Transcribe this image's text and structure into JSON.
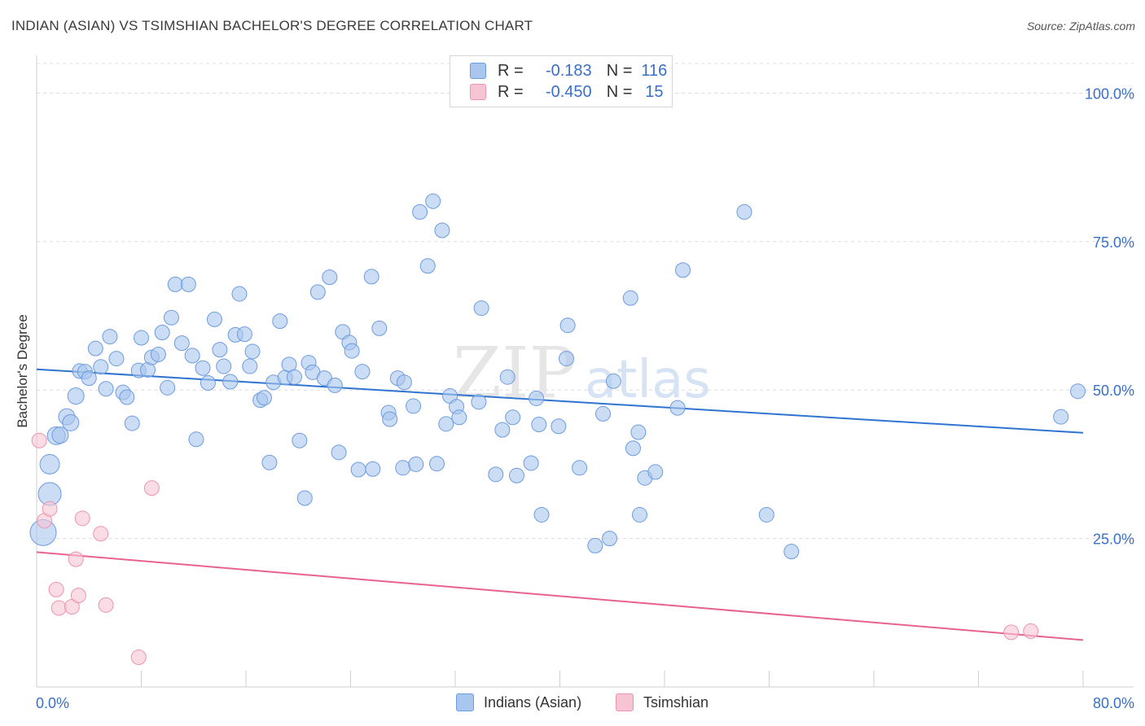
{
  "title": "INDIAN (ASIAN) VS TSIMSHIAN BACHELOR'S DEGREE CORRELATION CHART",
  "source": "Source: ZipAtlas.com",
  "watermark": {
    "zip": "ZIP",
    "atlas": "atlas"
  },
  "legend": {
    "rows": [
      {
        "r_label": "R =",
        "r_value": "-0.183",
        "n_label": "N =",
        "n_value": "116"
      },
      {
        "r_label": "R =",
        "r_value": "-0.450",
        "n_label": "N =",
        "n_value": "15"
      }
    ],
    "bottom": [
      "Indians (Asian)",
      "Tsimshian"
    ]
  },
  "colors": {
    "blue_fill": "#a9c7ee",
    "blue_stroke": "#6d9be0",
    "blue_line": "#2f74d0",
    "pink_fill": "#f7c4d3",
    "pink_stroke": "#ee93b0",
    "pink_line": "#e8628f",
    "axis_text": "#3a6fc9",
    "grid": "#dcdcdc"
  },
  "chart_data": {
    "type": "scatter",
    "title": "INDIAN (ASIAN) VS TSIMSHIAN BACHELOR'S DEGREE CORRELATION CHART",
    "xlabel": "",
    "ylabel": "Bachelor's Degree",
    "xlim": [
      0,
      80
    ],
    "ylim": [
      0,
      105
    ],
    "x_tick_labels": [
      "0.0%",
      "80.0%"
    ],
    "y_ticks": [
      25,
      50,
      75,
      100
    ],
    "y_tick_labels": [
      "25.0%",
      "50.0%",
      "75.0%",
      "100.0%"
    ],
    "series": [
      {
        "name": "Indians (Asian)",
        "color": "#a9c7ee",
        "trend": {
          "x": [
            0,
            80
          ],
          "y": [
            53.5,
            42.8
          ]
        },
        "points": [
          [
            0.5,
            26.0,
            16
          ],
          [
            1.0,
            32.5,
            14
          ],
          [
            1.0,
            37.5,
            12
          ],
          [
            1.5,
            42.3,
            11
          ],
          [
            1.8,
            42.4,
            10
          ],
          [
            2.3,
            45.5,
            10
          ],
          [
            2.6,
            44.5,
            10
          ],
          [
            3.0,
            49.0,
            10
          ],
          [
            3.3,
            53.2,
            9
          ],
          [
            3.7,
            53.1,
            9
          ],
          [
            4.0,
            52.0,
            9
          ],
          [
            4.5,
            57.0,
            9
          ],
          [
            4.9,
            53.9,
            9
          ],
          [
            5.3,
            50.2,
            9
          ],
          [
            5.6,
            59.0,
            9
          ],
          [
            6.1,
            55.3,
            9
          ],
          [
            6.6,
            49.6,
            9
          ],
          [
            6.9,
            48.8,
            9
          ],
          [
            7.3,
            44.4,
            9
          ],
          [
            7.8,
            53.3,
            9
          ],
          [
            8.0,
            58.8,
            9
          ],
          [
            8.5,
            53.4,
            9
          ],
          [
            8.8,
            55.5,
            9
          ],
          [
            9.3,
            56.0,
            9
          ],
          [
            9.6,
            59.7,
            9
          ],
          [
            10.0,
            50.4,
            9
          ],
          [
            10.3,
            62.2,
            9
          ],
          [
            10.6,
            67.8,
            9
          ],
          [
            11.1,
            57.9,
            9
          ],
          [
            11.6,
            67.8,
            9
          ],
          [
            11.9,
            55.8,
            9
          ],
          [
            12.2,
            41.7,
            9
          ],
          [
            12.7,
            53.7,
            9
          ],
          [
            13.1,
            51.2,
            9
          ],
          [
            13.6,
            61.9,
            9
          ],
          [
            14.0,
            56.8,
            9
          ],
          [
            14.3,
            54.0,
            9
          ],
          [
            14.8,
            51.4,
            9
          ],
          [
            15.2,
            59.3,
            9
          ],
          [
            15.5,
            66.2,
            9
          ],
          [
            15.9,
            59.4,
            9
          ],
          [
            16.5,
            56.5,
            9
          ],
          [
            16.3,
            54.0,
            9
          ],
          [
            17.1,
            48.3,
            9
          ],
          [
            17.4,
            48.7,
            9
          ],
          [
            17.8,
            37.8,
            9
          ],
          [
            18.1,
            51.3,
            9
          ],
          [
            18.6,
            61.6,
            9
          ],
          [
            19.0,
            52.1,
            9
          ],
          [
            19.3,
            54.3,
            9
          ],
          [
            19.7,
            52.2,
            9
          ],
          [
            20.1,
            41.5,
            9
          ],
          [
            20.5,
            31.8,
            9
          ],
          [
            20.8,
            54.6,
            9
          ],
          [
            21.1,
            53.0,
            9
          ],
          [
            21.5,
            66.5,
            9
          ],
          [
            22.0,
            52.0,
            9
          ],
          [
            22.4,
            69.0,
            9
          ],
          [
            22.8,
            50.8,
            9
          ],
          [
            23.1,
            39.5,
            9
          ],
          [
            23.4,
            59.8,
            9
          ],
          [
            23.9,
            58.0,
            9
          ],
          [
            24.1,
            56.6,
            9
          ],
          [
            24.6,
            36.6,
            9
          ],
          [
            24.9,
            53.1,
            9
          ],
          [
            25.7,
            36.7,
            9
          ],
          [
            25.6,
            69.1,
            9
          ],
          [
            26.2,
            60.4,
            9
          ],
          [
            26.9,
            46.2,
            9
          ],
          [
            27.0,
            45.1,
            9
          ],
          [
            27.6,
            52.0,
            9
          ],
          [
            28.1,
            51.3,
            9
          ],
          [
            28.0,
            36.9,
            9
          ],
          [
            28.8,
            47.3,
            9
          ],
          [
            29.0,
            37.5,
            9
          ],
          [
            29.3,
            80.0,
            9
          ],
          [
            29.9,
            70.9,
            9
          ],
          [
            30.3,
            81.8,
            9
          ],
          [
            30.6,
            37.6,
            9
          ],
          [
            31.0,
            76.9,
            9
          ],
          [
            31.3,
            44.3,
            9
          ],
          [
            31.6,
            49.0,
            9
          ],
          [
            32.1,
            47.2,
            9
          ],
          [
            32.3,
            45.4,
            9
          ],
          [
            34.0,
            63.8,
            9
          ],
          [
            33.8,
            48.0,
            9
          ],
          [
            35.1,
            35.8,
            9
          ],
          [
            35.6,
            43.3,
            9
          ],
          [
            36.0,
            52.2,
            9
          ],
          [
            36.4,
            45.4,
            9
          ],
          [
            36.7,
            35.6,
            9
          ],
          [
            37.8,
            37.7,
            9
          ],
          [
            38.2,
            48.6,
            9
          ],
          [
            38.4,
            44.2,
            9
          ],
          [
            38.6,
            29.0,
            9
          ],
          [
            39.9,
            43.9,
            9
          ],
          [
            40.5,
            55.3,
            9
          ],
          [
            40.6,
            60.9,
            9
          ],
          [
            41.5,
            36.9,
            9
          ],
          [
            42.7,
            23.8,
            9
          ],
          [
            43.3,
            46.0,
            9
          ],
          [
            43.8,
            25.0,
            9
          ],
          [
            44.1,
            51.5,
            9
          ],
          [
            45.4,
            65.5,
            9
          ],
          [
            45.6,
            40.2,
            9
          ],
          [
            46.1,
            29.0,
            9
          ],
          [
            46.0,
            42.9,
            9
          ],
          [
            46.5,
            35.2,
            9
          ],
          [
            47.3,
            36.2,
            9
          ],
          [
            49.0,
            47.0,
            9
          ],
          [
            49.4,
            70.2,
            9
          ],
          [
            54.1,
            80.0,
            9
          ],
          [
            55.8,
            29.0,
            9
          ],
          [
            57.7,
            22.8,
            9
          ],
          [
            78.3,
            45.5,
            9
          ],
          [
            79.6,
            49.8,
            9
          ]
        ]
      },
      {
        "name": "Tsimshian",
        "color": "#f7c4d3",
        "trend": {
          "x": [
            0,
            80
          ],
          "y": [
            22.7,
            7.9
          ]
        },
        "points": [
          [
            0.2,
            41.5,
            9
          ],
          [
            0.6,
            28.0,
            9
          ],
          [
            1.0,
            30.0,
            9
          ],
          [
            1.5,
            16.4,
            9
          ],
          [
            1.7,
            13.3,
            9
          ],
          [
            2.7,
            13.5,
            9
          ],
          [
            3.0,
            21.5,
            9
          ],
          [
            3.2,
            15.4,
            9
          ],
          [
            3.5,
            28.4,
            9
          ],
          [
            4.9,
            25.8,
            9
          ],
          [
            5.3,
            13.8,
            9
          ],
          [
            7.8,
            5.0,
            9
          ],
          [
            8.8,
            33.5,
            9
          ],
          [
            74.5,
            9.2,
            9
          ],
          [
            76.0,
            9.4,
            9
          ]
        ]
      }
    ]
  }
}
